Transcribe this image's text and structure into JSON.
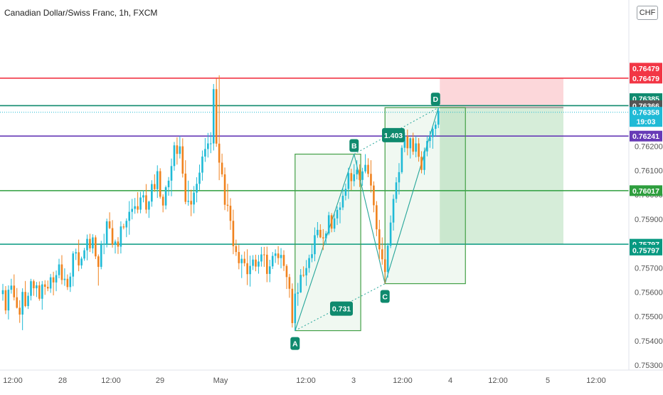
{
  "header": {
    "title": "Canadian Dollar/Swiss Franc, 1h, FXCM",
    "currency_badge": "CHF"
  },
  "colors": {
    "bull": "#26a69a",
    "bullLight": "#1fbad6",
    "bear": "#f0821e",
    "red": "#f23645",
    "teal": "#0f8a6e",
    "purple": "#673ab7",
    "green": "#2e9e3e",
    "green2": "#089981",
    "pattern": "#43a047"
  },
  "chart_data": {
    "type": "candlestick",
    "title": "Canadian Dollar/Swiss Franc, 1h, FXCM",
    "ylim": [
      0.7528,
      0.768
    ],
    "y_ticks": [
      "0.75300",
      "0.75400",
      "0.75500",
      "0.75600",
      "0.75700",
      "0.75900",
      "0.76000",
      "0.76100",
      "0.76200"
    ],
    "x_ticks": [
      "12:00",
      "28",
      "12:00",
      "29",
      "May",
      "12:00",
      "3",
      "12:00",
      "4",
      "12:00",
      "5",
      "12:00"
    ],
    "price_levels": [
      {
        "name": "red-level",
        "value": 0.76479,
        "label": "0.76479",
        "color": "#f23645"
      },
      {
        "name": "teal-level",
        "value": 0.76366,
        "label": "0.76366",
        "color": "#0f8a6e"
      },
      {
        "name": "purple-level",
        "value": 0.76241,
        "label": "0.76241",
        "color": "#673ab7"
      },
      {
        "name": "green-level",
        "value": 0.76017,
        "label": "0.76017",
        "color": "#2e9e3e"
      },
      {
        "name": "green-level-2",
        "value": 0.75797,
        "label": "0.75797",
        "color": "#089981"
      }
    ],
    "price_tags": [
      {
        "name": "tag-top",
        "value": 0.7652,
        "label": "0.76479",
        "color": "#f23645"
      },
      {
        "name": "tag-red",
        "value": 0.76479,
        "label": "0.76479",
        "color": "#f23645"
      },
      {
        "name": "tag-76385",
        "value": 0.76395,
        "label": "0.76385",
        "color": "#0f8a6e"
      },
      {
        "name": "tag-76366",
        "value": 0.76366,
        "label": "0.76366",
        "color": "#555555"
      },
      {
        "name": "tag-last",
        "value": 0.76339,
        "label": "0.76358",
        "sub": "19:03",
        "color": "#1fbad6"
      },
      {
        "name": "tag-purple",
        "value": 0.76241,
        "label": "0.76241",
        "color": "#673ab7"
      },
      {
        "name": "tag-green",
        "value": 0.76017,
        "label": "0.76017",
        "color": "#2e9e3e"
      },
      {
        "name": "tag-green-2",
        "value": 0.75797,
        "label": "0.75797",
        "color": "#089981"
      },
      {
        "name": "tag-green-3",
        "value": 0.75773,
        "label": "0.75797",
        "color": "#089981"
      }
    ],
    "pattern_points": [
      {
        "label": "A",
        "value": 0.75442
      },
      {
        "label": "B",
        "value": 0.76167
      },
      {
        "label": "C",
        "value": 0.75635
      },
      {
        "label": "D",
        "value": 0.76358
      }
    ],
    "ratios": [
      "0.731",
      "1.403"
    ],
    "position": {
      "entry": 0.76358,
      "stop": 0.76479,
      "target": 0.75797
    },
    "candles": [
      [
        0.75592,
        0.75634,
        0.75565,
        0.75608
      ],
      [
        0.75608,
        0.75625,
        0.7551,
        0.75525
      ],
      [
        0.75525,
        0.75628,
        0.75488,
        0.7561
      ],
      [
        0.7561,
        0.75655,
        0.75594,
        0.75627
      ],
      [
        0.75627,
        0.75673,
        0.75566,
        0.75579
      ],
      [
        0.75579,
        0.75617,
        0.75533,
        0.75536
      ],
      [
        0.75536,
        0.75567,
        0.75474,
        0.75508
      ],
      [
        0.75508,
        0.75616,
        0.75444,
        0.75601
      ],
      [
        0.75601,
        0.75646,
        0.75538,
        0.75543
      ],
      [
        0.75543,
        0.75599,
        0.75531,
        0.75585
      ],
      [
        0.75585,
        0.75655,
        0.75566,
        0.75645
      ],
      [
        0.75645,
        0.75652,
        0.75585,
        0.75616
      ],
      [
        0.75616,
        0.75642,
        0.7558,
        0.75628
      ],
      [
        0.75628,
        0.75644,
        0.75565,
        0.75573
      ],
      [
        0.75573,
        0.75646,
        0.75528,
        0.75632
      ],
      [
        0.75632,
        0.75649,
        0.75589,
        0.75622
      ],
      [
        0.75622,
        0.75648,
        0.75604,
        0.75615
      ],
      [
        0.75615,
        0.75675,
        0.75597,
        0.75661
      ],
      [
        0.75661,
        0.75684,
        0.75587,
        0.7564
      ],
      [
        0.7564,
        0.75689,
        0.75604,
        0.7567
      ],
      [
        0.7567,
        0.75737,
        0.75657,
        0.75714
      ],
      [
        0.75714,
        0.75752,
        0.75632,
        0.7565
      ],
      [
        0.7565,
        0.75698,
        0.75626,
        0.75655
      ],
      [
        0.75655,
        0.75673,
        0.75609,
        0.75621
      ],
      [
        0.75621,
        0.7568,
        0.75601,
        0.75664
      ],
      [
        0.75664,
        0.75768,
        0.75624,
        0.75759
      ],
      [
        0.75759,
        0.75779,
        0.75732,
        0.75764
      ],
      [
        0.75764,
        0.75816,
        0.75686,
        0.7571
      ],
      [
        0.7571,
        0.75746,
        0.75696,
        0.75738
      ],
      [
        0.75738,
        0.75782,
        0.75729,
        0.75772
      ],
      [
        0.75772,
        0.75837,
        0.75731,
        0.75819
      ],
      [
        0.75819,
        0.7584,
        0.75765,
        0.7578
      ],
      [
        0.7578,
        0.75838,
        0.75759,
        0.75825
      ],
      [
        0.75825,
        0.75834,
        0.75736,
        0.75747
      ],
      [
        0.75747,
        0.75755,
        0.75627,
        0.75704
      ],
      [
        0.75704,
        0.75811,
        0.75694,
        0.75795
      ],
      [
        0.75795,
        0.7584,
        0.75756,
        0.75798
      ],
      [
        0.75798,
        0.75902,
        0.75784,
        0.75891
      ],
      [
        0.75891,
        0.75928,
        0.75859,
        0.75863
      ],
      [
        0.75863,
        0.75896,
        0.75783,
        0.75795
      ],
      [
        0.75795,
        0.75816,
        0.75759,
        0.75808
      ],
      [
        0.75808,
        0.75826,
        0.75757,
        0.75787
      ],
      [
        0.75787,
        0.75891,
        0.75759,
        0.7587
      ],
      [
        0.7587,
        0.75881,
        0.75858,
        0.75866
      ],
      [
        0.75866,
        0.75903,
        0.75826,
        0.75893
      ],
      [
        0.75893,
        0.75974,
        0.75836,
        0.7593
      ],
      [
        0.7593,
        0.75983,
        0.75899,
        0.75942
      ],
      [
        0.75942,
        0.75987,
        0.75922,
        0.75953
      ],
      [
        0.75953,
        0.76011,
        0.75924,
        0.75939
      ],
      [
        0.75939,
        0.76012,
        0.75924,
        0.75989
      ],
      [
        0.75989,
        0.76018,
        0.75969,
        0.75998
      ],
      [
        0.75998,
        0.76044,
        0.75923,
        0.75939
      ],
      [
        0.75939,
        0.75976,
        0.75905,
        0.75972
      ],
      [
        0.75972,
        0.7606,
        0.75951,
        0.76044
      ],
      [
        0.76044,
        0.76084,
        0.76012,
        0.76023
      ],
      [
        0.76023,
        0.76121,
        0.75987,
        0.76097
      ],
      [
        0.76097,
        0.76109,
        0.75984,
        0.75992
      ],
      [
        0.75992,
        0.76002,
        0.75928,
        0.75956
      ],
      [
        0.75956,
        0.76038,
        0.7594,
        0.76031
      ],
      [
        0.76031,
        0.76073,
        0.75996,
        0.76058
      ],
      [
        0.76058,
        0.76149,
        0.75994,
        0.76118
      ],
      [
        0.76118,
        0.76217,
        0.76099,
        0.76203
      ],
      [
        0.76203,
        0.76236,
        0.76124,
        0.76168
      ],
      [
        0.76168,
        0.76241,
        0.76149,
        0.76199
      ],
      [
        0.76199,
        0.76232,
        0.76071,
        0.76087
      ],
      [
        0.76087,
        0.76142,
        0.75961,
        0.75971
      ],
      [
        0.75971,
        0.76058,
        0.75955,
        0.75975
      ],
      [
        0.75975,
        0.76021,
        0.75912,
        0.7596
      ],
      [
        0.7596,
        0.76036,
        0.75924,
        0.76009
      ],
      [
        0.76009,
        0.76072,
        0.75969,
        0.76045
      ],
      [
        0.76045,
        0.76124,
        0.7602,
        0.76091
      ],
      [
        0.76091,
        0.76182,
        0.76058,
        0.76157
      ],
      [
        0.76157,
        0.76233,
        0.76135,
        0.76188
      ],
      [
        0.76188,
        0.76254,
        0.76153,
        0.76211
      ],
      [
        0.76211,
        0.76257,
        0.76171,
        0.76211
      ],
      [
        0.76211,
        0.76455,
        0.76182,
        0.76434
      ],
      [
        0.76434,
        0.76477,
        0.76197,
        0.7621
      ],
      [
        0.7621,
        0.76491,
        0.7606,
        0.76132
      ],
      [
        0.76132,
        0.76169,
        0.76073,
        0.76084
      ],
      [
        0.76084,
        0.76112,
        0.75937,
        0.75959
      ],
      [
        0.75959,
        0.76045,
        0.75931,
        0.75955
      ],
      [
        0.75955,
        0.75986,
        0.75856,
        0.75893
      ],
      [
        0.75893,
        0.75939,
        0.75756,
        0.75789
      ],
      [
        0.75789,
        0.75816,
        0.75749,
        0.75765
      ],
      [
        0.75765,
        0.75794,
        0.75694,
        0.75719
      ],
      [
        0.75719,
        0.75754,
        0.75658,
        0.75737
      ],
      [
        0.75737,
        0.75767,
        0.75706,
        0.75719
      ],
      [
        0.75719,
        0.75776,
        0.75629,
        0.75674
      ],
      [
        0.75674,
        0.7575,
        0.75623,
        0.75708
      ],
      [
        0.75708,
        0.75752,
        0.75691,
        0.75734
      ],
      [
        0.75734,
        0.75754,
        0.75686,
        0.75705
      ],
      [
        0.75705,
        0.75753,
        0.75676,
        0.75726
      ],
      [
        0.75726,
        0.75786,
        0.75705,
        0.75755
      ],
      [
        0.75755,
        0.75786,
        0.75704,
        0.75754
      ],
      [
        0.75754,
        0.75787,
        0.75641,
        0.75675
      ],
      [
        0.75675,
        0.75733,
        0.75641,
        0.75706
      ],
      [
        0.75706,
        0.75765,
        0.75695,
        0.75749
      ],
      [
        0.75749,
        0.75776,
        0.7572,
        0.75759
      ],
      [
        0.75759,
        0.75789,
        0.75713,
        0.7574
      ],
      [
        0.7574,
        0.75781,
        0.75698,
        0.75753
      ],
      [
        0.75753,
        0.75772,
        0.75687,
        0.75708
      ],
      [
        0.75708,
        0.75715,
        0.75613,
        0.75662
      ],
      [
        0.75662,
        0.75675,
        0.75577,
        0.75614
      ],
      [
        0.75614,
        0.75636,
        0.75455,
        0.75473
      ],
      [
        0.75473,
        0.75607,
        0.75442,
        0.75594
      ],
      [
        0.75594,
        0.75638,
        0.75544,
        0.75599
      ],
      [
        0.75599,
        0.75695,
        0.75597,
        0.75671
      ],
      [
        0.75671,
        0.75706,
        0.75662,
        0.75669
      ],
      [
        0.75669,
        0.75732,
        0.75626,
        0.75699
      ],
      [
        0.75699,
        0.75754,
        0.7568,
        0.7574
      ],
      [
        0.7574,
        0.75794,
        0.75723,
        0.75756
      ],
      [
        0.75756,
        0.75866,
        0.75727,
        0.75834
      ],
      [
        0.75834,
        0.75888,
        0.75823,
        0.75856
      ],
      [
        0.75856,
        0.75879,
        0.75822,
        0.75825
      ],
      [
        0.75825,
        0.75859,
        0.75773,
        0.75821
      ],
      [
        0.75821,
        0.75851,
        0.75794,
        0.75841
      ],
      [
        0.75841,
        0.7593,
        0.75834,
        0.75916
      ],
      [
        0.75916,
        0.75925,
        0.75846,
        0.75861
      ],
      [
        0.75861,
        0.75925,
        0.75847,
        0.75903
      ],
      [
        0.75903,
        0.75952,
        0.75876,
        0.75938
      ],
      [
        0.75938,
        0.7597,
        0.75883,
        0.75948
      ],
      [
        0.75948,
        0.7603,
        0.75937,
        0.75996
      ],
      [
        0.75996,
        0.76046,
        0.75977,
        0.76024
      ],
      [
        0.76024,
        0.76111,
        0.75983,
        0.76089
      ],
      [
        0.76089,
        0.76107,
        0.76019,
        0.76056
      ],
      [
        0.76056,
        0.76126,
        0.76035,
        0.76084
      ],
      [
        0.76084,
        0.76142,
        0.76063,
        0.76103
      ],
      [
        0.76103,
        0.76125,
        0.76032,
        0.76061
      ],
      [
        0.76061,
        0.76111,
        0.76037,
        0.76096
      ],
      [
        0.76096,
        0.76167,
        0.76088,
        0.76123
      ],
      [
        0.76123,
        0.7615,
        0.76072,
        0.76086
      ],
      [
        0.76086,
        0.76142,
        0.76009,
        0.76038
      ],
      [
        0.76038,
        0.76055,
        0.75928,
        0.75957
      ],
      [
        0.75957,
        0.75974,
        0.7583,
        0.75858
      ],
      [
        0.75858,
        0.75897,
        0.75735,
        0.75776
      ],
      [
        0.75776,
        0.75825,
        0.75713,
        0.75735
      ],
      [
        0.75735,
        0.75779,
        0.75635,
        0.75683
      ],
      [
        0.75683,
        0.75802,
        0.7566,
        0.75791
      ],
      [
        0.75791,
        0.75915,
        0.75781,
        0.75886
      ],
      [
        0.75886,
        0.76001,
        0.75853,
        0.75983
      ],
      [
        0.75983,
        0.76072,
        0.75967,
        0.76051
      ],
      [
        0.76051,
        0.7613,
        0.76001,
        0.76093
      ],
      [
        0.76093,
        0.76203,
        0.76086,
        0.76193
      ],
      [
        0.76193,
        0.76256,
        0.76175,
        0.76241
      ],
      [
        0.76241,
        0.76268,
        0.76162,
        0.76191
      ],
      [
        0.76191,
        0.76236,
        0.76149,
        0.76232
      ],
      [
        0.76232,
        0.76255,
        0.76164,
        0.76177
      ],
      [
        0.76177,
        0.76241,
        0.76154,
        0.76211
      ],
      [
        0.76211,
        0.76233,
        0.76136,
        0.76156
      ],
      [
        0.76156,
        0.76179,
        0.76088,
        0.76102
      ],
      [
        0.76102,
        0.76194,
        0.76082,
        0.76178
      ],
      [
        0.76178,
        0.76241,
        0.76158,
        0.76221
      ],
      [
        0.76221,
        0.76262,
        0.76193,
        0.76237
      ],
      [
        0.76237,
        0.76284,
        0.76189,
        0.76271
      ],
      [
        0.76271,
        0.76302,
        0.76238,
        0.76288
      ],
      [
        0.76288,
        0.76358,
        0.76274,
        0.76345
      ]
    ]
  }
}
